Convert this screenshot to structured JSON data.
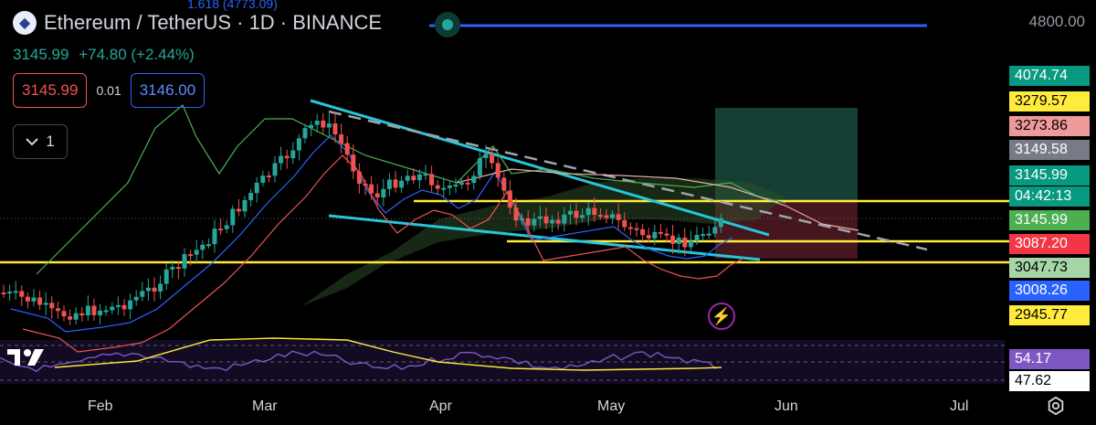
{
  "header": {
    "symbol": "Ethereum / TetherUS",
    "interval": "1D",
    "exchange": "BINANCE",
    "title": "Ethereum / TetherUS · 1D · BINANCE",
    "logo_icon": "ethereum-logo-icon"
  },
  "fib_label": "1.618 (4773.09)",
  "quote": {
    "last": "3145.99",
    "change": "+74.80 (+2.44%)"
  },
  "trade": {
    "sell": "3145.99",
    "spread": "0.01",
    "buy": "3146.00"
  },
  "collapse": {
    "label": "1",
    "icon": "chevron-down-icon"
  },
  "price_axis": {
    "top_label": "4800.00",
    "badges": [
      {
        "label": "4074.74",
        "bg": "#089981",
        "fg": "#ffffff"
      },
      {
        "label": "3279.57",
        "bg": "#ffeb3b",
        "fg": "#000000"
      },
      {
        "label": "3273.86",
        "bg": "#ef9a9a",
        "fg": "#000000"
      },
      {
        "label": "3149.58",
        "bg": "#787b86",
        "fg": "#ffffff"
      },
      {
        "label": "3145.99",
        "bg": "#089981",
        "fg": "#ffffff"
      },
      {
        "label": "04:42:13",
        "bg": "#089981",
        "fg": "#ffffff"
      },
      {
        "label": "3145.99",
        "bg": "#4caf50",
        "fg": "#ffffff"
      },
      {
        "label": "3087.20",
        "bg": "#f23645",
        "fg": "#ffffff"
      },
      {
        "label": "3047.73",
        "bg": "#a5d6a7",
        "fg": "#000000"
      },
      {
        "label": "3008.26",
        "bg": "#2962ff",
        "fg": "#ffffff"
      },
      {
        "label": "2945.77",
        "bg": "#ffeb3b",
        "fg": "#000000"
      },
      {
        "label": "54.17",
        "bg": "#7e57c2",
        "fg": "#ffffff"
      },
      {
        "label": "47.62",
        "bg": "#ffffff",
        "fg": "#000000"
      }
    ]
  },
  "time_axis": [
    "Feb",
    "Mar",
    "Apr",
    "May",
    "Jun",
    "Jul"
  ],
  "colors": {
    "up": "#26a69a",
    "down": "#ef5350",
    "trendline": "#26c6da",
    "support": "#ffeb3b",
    "fib": "#2962ff",
    "rsi": "#7e57c2",
    "rsi_ma": "#ffeb3b"
  },
  "icons": {
    "settings": "gear-icon",
    "alert": "lightning-icon",
    "brand": "tradingview-logo"
  }
}
